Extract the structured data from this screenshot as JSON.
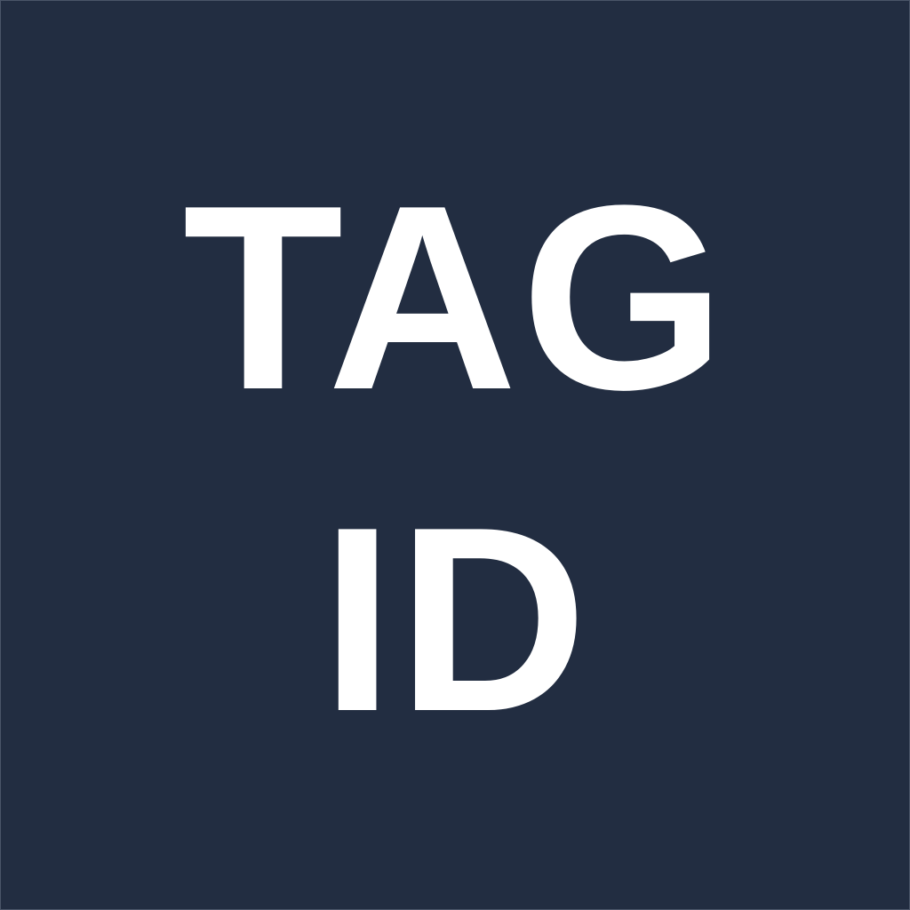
{
  "icon": {
    "line_1": "TAG",
    "line_2": "ID",
    "background_color": "#222d41",
    "text_color": "#ffffff"
  }
}
